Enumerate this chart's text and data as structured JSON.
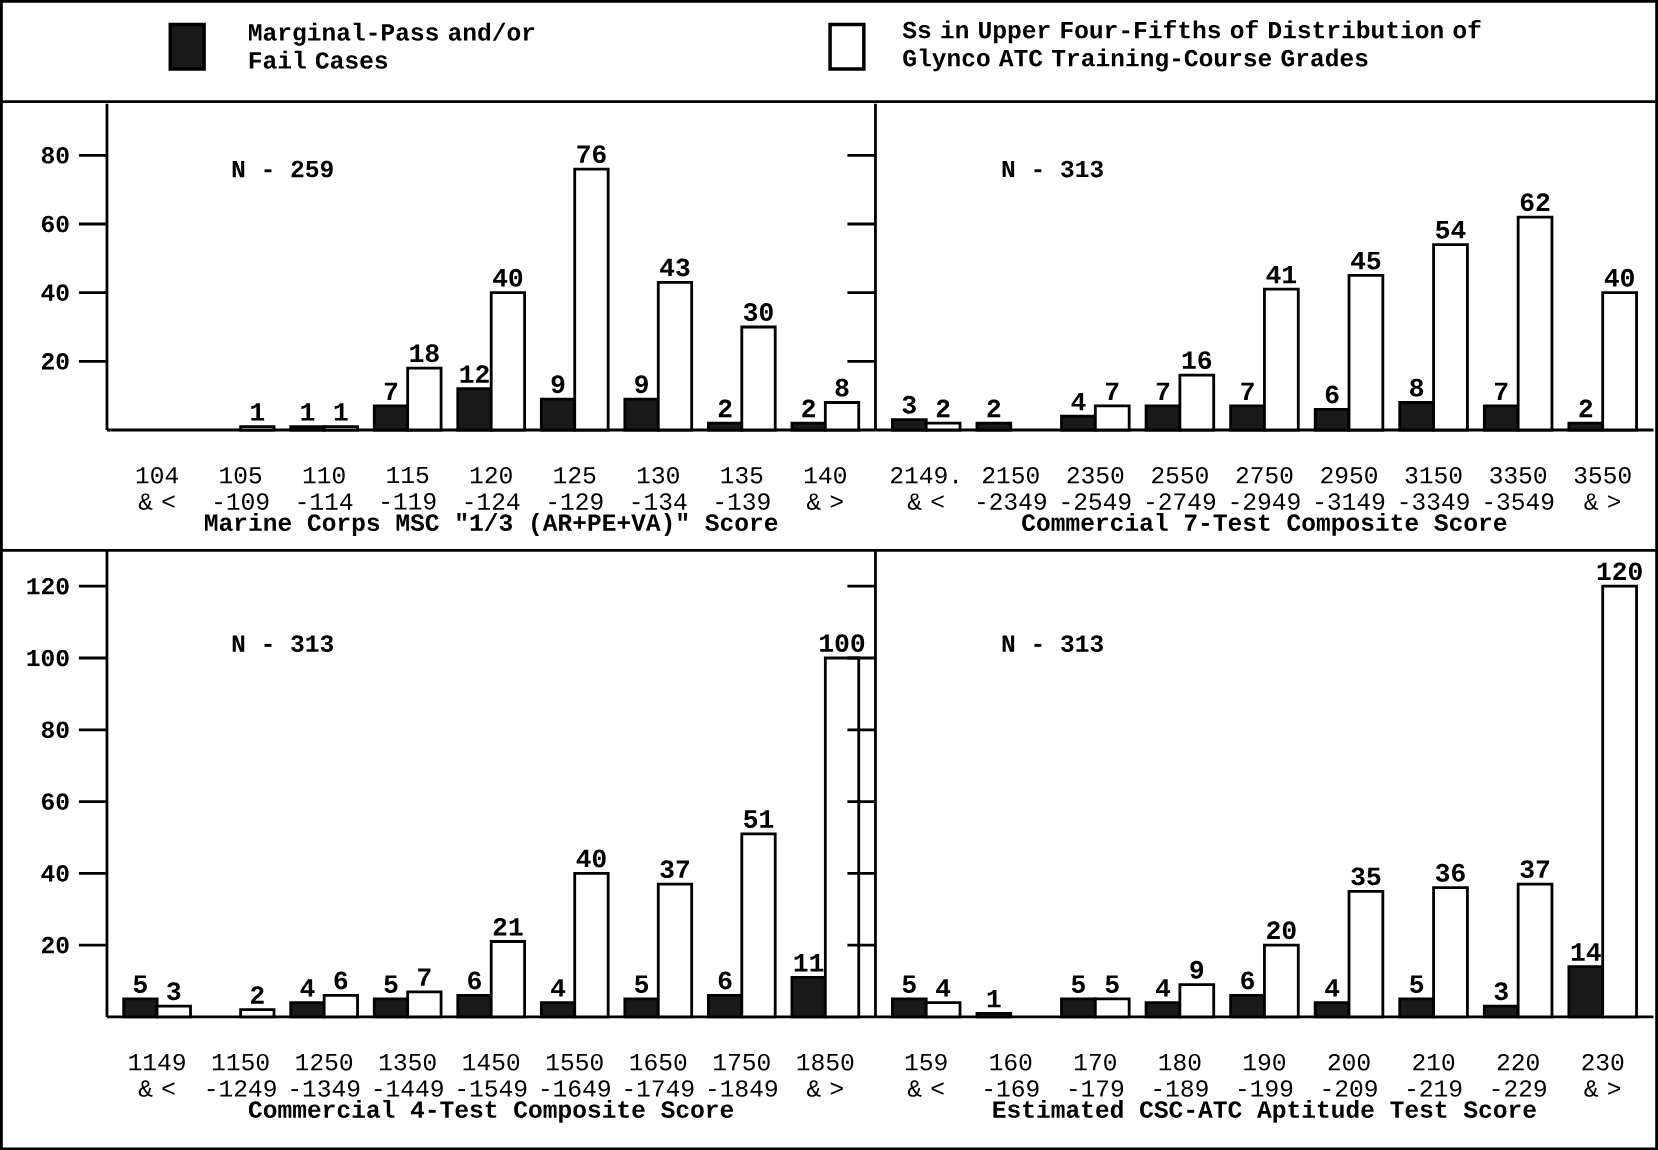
{
  "chart_data": [
    {
      "type": "bar",
      "legend": "top",
      "data_labels": true,
      "grid": false,
      "xlabel": "Marine Corps MSC \"1/3 (AR+PE+VA)\" Score",
      "annotations": [
        "N - 259"
      ],
      "categories": [
        "104 & <",
        "105 -109",
        "110 -114",
        "115 -119",
        "120 -124",
        "125 -129",
        "130 -134",
        "135 -139",
        "140 & >"
      ],
      "series": [
        {
          "name": "Marginal-Pass and/or Fail Cases",
          "color": "#1a1a1a",
          "values": [
            null,
            null,
            1,
            7,
            12,
            9,
            9,
            2,
            2
          ]
        },
        {
          "name": "Ss in Upper Four-Fifths of Distribution of Glynco ATC Training-Course Grades",
          "color": "#ffffff",
          "values": [
            null,
            1,
            1,
            18,
            40,
            76,
            43,
            30,
            8
          ]
        }
      ],
      "ylim": [
        0,
        95
      ],
      "yticks": [
        20,
        40,
        60,
        80
      ]
    },
    {
      "type": "bar",
      "data_labels": true,
      "grid": false,
      "tick_labels": "x",
      "xlabel": "Commercial 7-Test Composite Score",
      "annotations": [
        "N - 313"
      ],
      "categories": [
        "2149. & <",
        "2150 -2349",
        "2350 -2549",
        "2550 -2749",
        "2750 -2949",
        "2950 -3149",
        "3150 -3349",
        "3350 -3549",
        "3550 & >"
      ],
      "series": [
        {
          "color": "#1a1a1a",
          "values": [
            3,
            2,
            4,
            7,
            7,
            6,
            8,
            7,
            2
          ]
        },
        {
          "color": "#ffffff",
          "values": [
            2,
            null,
            7,
            16,
            41,
            45,
            54,
            62,
            40
          ]
        }
      ],
      "ylim": [
        0,
        95
      ],
      "yticks": [
        20,
        40,
        60,
        80
      ]
    },
    {
      "type": "bar",
      "data_labels": true,
      "grid": false,
      "xlabel": "Commercial 4-Test Composite Score",
      "annotations": [
        "N - 313"
      ],
      "categories": [
        "1149 & <",
        "1150 -1249",
        "1250 -1349",
        "1350 -1449",
        "1450 -1549",
        "1550 -1649",
        "1650 -1749",
        "1750 -1849",
        "1850 & >"
      ],
      "series": [
        {
          "color": "#1a1a1a",
          "values": [
            5,
            null,
            4,
            5,
            6,
            4,
            5,
            6,
            11
          ]
        },
        {
          "color": "#ffffff",
          "values": [
            3,
            2,
            6,
            7,
            21,
            40,
            37,
            51,
            100
          ]
        }
      ],
      "ylim": [
        0,
        130
      ],
      "yticks": [
        20,
        40,
        60,
        80,
        100,
        120
      ]
    },
    {
      "type": "bar",
      "data_labels": true,
      "grid": false,
      "tick_labels": "x",
      "xlabel": "Estimated CSC-ATC Aptitude Test Score",
      "annotations": [
        "N - 313"
      ],
      "categories": [
        "159 & <",
        "160 -169",
        "170 -179",
        "180 -189",
        "190 -199",
        "200 -209",
        "210 -219",
        "220 -229",
        "230 & >"
      ],
      "series": [
        {
          "color": "#1a1a1a",
          "values": [
            5,
            1,
            5,
            4,
            6,
            4,
            5,
            3,
            14
          ]
        },
        {
          "color": "#ffffff",
          "values": [
            4,
            null,
            5,
            9,
            20,
            35,
            36,
            37,
            120
          ]
        }
      ],
      "ylim": [
        0,
        130
      ],
      "yticks": [
        20,
        40,
        60,
        80,
        100,
        120
      ]
    }
  ]
}
